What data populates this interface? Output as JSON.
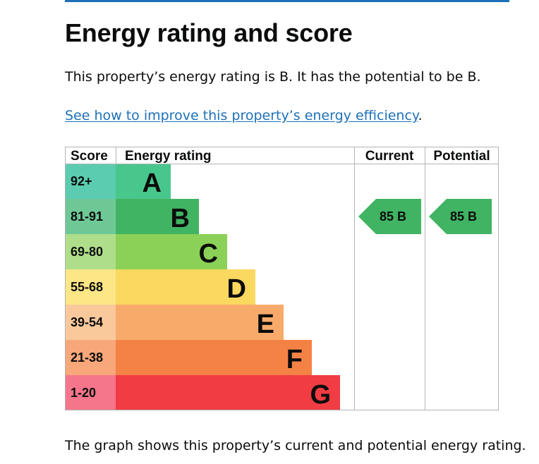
{
  "heading": "Energy rating and score",
  "intro_text": "This property’s energy rating is B. It has the potential to be B.",
  "link_text": "See how to improve this property’s energy efficiency",
  "link_suffix": ".",
  "outro_text": "The graph shows this property’s current and potential energy rating.",
  "chart_data": {
    "type": "bar",
    "column_headers": [
      "Score",
      "Energy rating",
      "Current",
      "Potential"
    ],
    "bands": [
      {
        "score_range": "92+",
        "letter": "A",
        "bar_color": "#48c78c",
        "score_color": "#5bccb0"
      },
      {
        "score_range": "81-91",
        "letter": "B",
        "bar_color": "#40b463",
        "score_color": "#6dc896"
      },
      {
        "score_range": "69-80",
        "letter": "C",
        "bar_color": "#8bd057",
        "score_color": "#aede8a"
      },
      {
        "score_range": "55-68",
        "letter": "D",
        "bar_color": "#fbd85f",
        "score_color": "#fde685"
      },
      {
        "score_range": "39-54",
        "letter": "E",
        "bar_color": "#f8aa6b",
        "score_color": "#f9c99c"
      },
      {
        "score_range": "21-38",
        "letter": "F",
        "bar_color": "#f48245",
        "score_color": "#f7a77a"
      },
      {
        "score_range": "1-20",
        "letter": "G",
        "bar_color": "#f03c42",
        "score_color": "#f5758b"
      }
    ],
    "current": {
      "score": 85,
      "letter": "B",
      "label": "85  B",
      "color": "#40b463"
    },
    "potential": {
      "score": 85,
      "letter": "B",
      "label": "85  B",
      "color": "#40b463"
    }
  }
}
